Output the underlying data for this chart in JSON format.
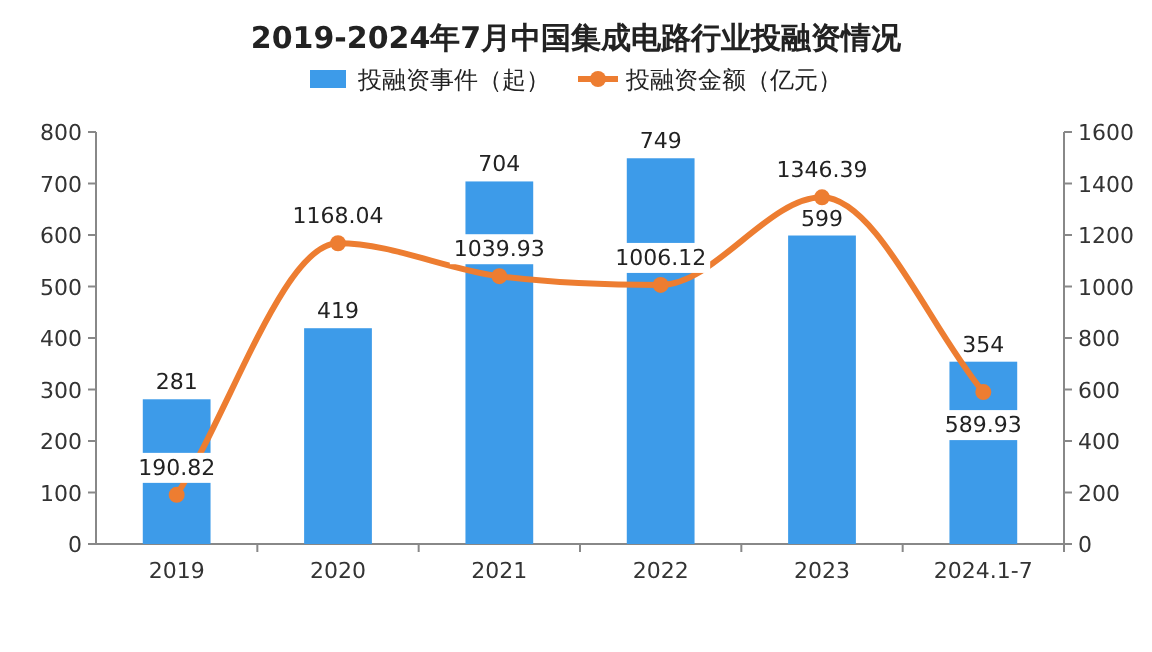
{
  "chart_data": {
    "type": "bar",
    "title": "2019-2024年7月中国集成电路行业投融资情况",
    "categories": [
      "2019",
      "2020",
      "2021",
      "2022",
      "2023",
      "2024.1-7"
    ],
    "series": [
      {
        "name": "投融资事件（起）",
        "color": "#3d9be9",
        "values": [
          281,
          419,
          704,
          749,
          599,
          354
        ]
      },
      {
        "name": "投融资金额（亿元）",
        "type": "line",
        "axis": "y2",
        "color": "#ed7d31",
        "values": [
          190.82,
          1168.04,
          1039.93,
          1006.12,
          1346.39,
          589.93
        ]
      }
    ],
    "ylim": [
      0,
      800
    ],
    "yticks": [
      0,
      100,
      200,
      300,
      400,
      500,
      600,
      700,
      800
    ],
    "y2lim": [
      0,
      1600
    ],
    "y2ticks": [
      0,
      200,
      400,
      600,
      800,
      1000,
      1200,
      1400,
      1600
    ],
    "data_labels": true,
    "legend": "top",
    "marker": "circle",
    "grid": false
  }
}
